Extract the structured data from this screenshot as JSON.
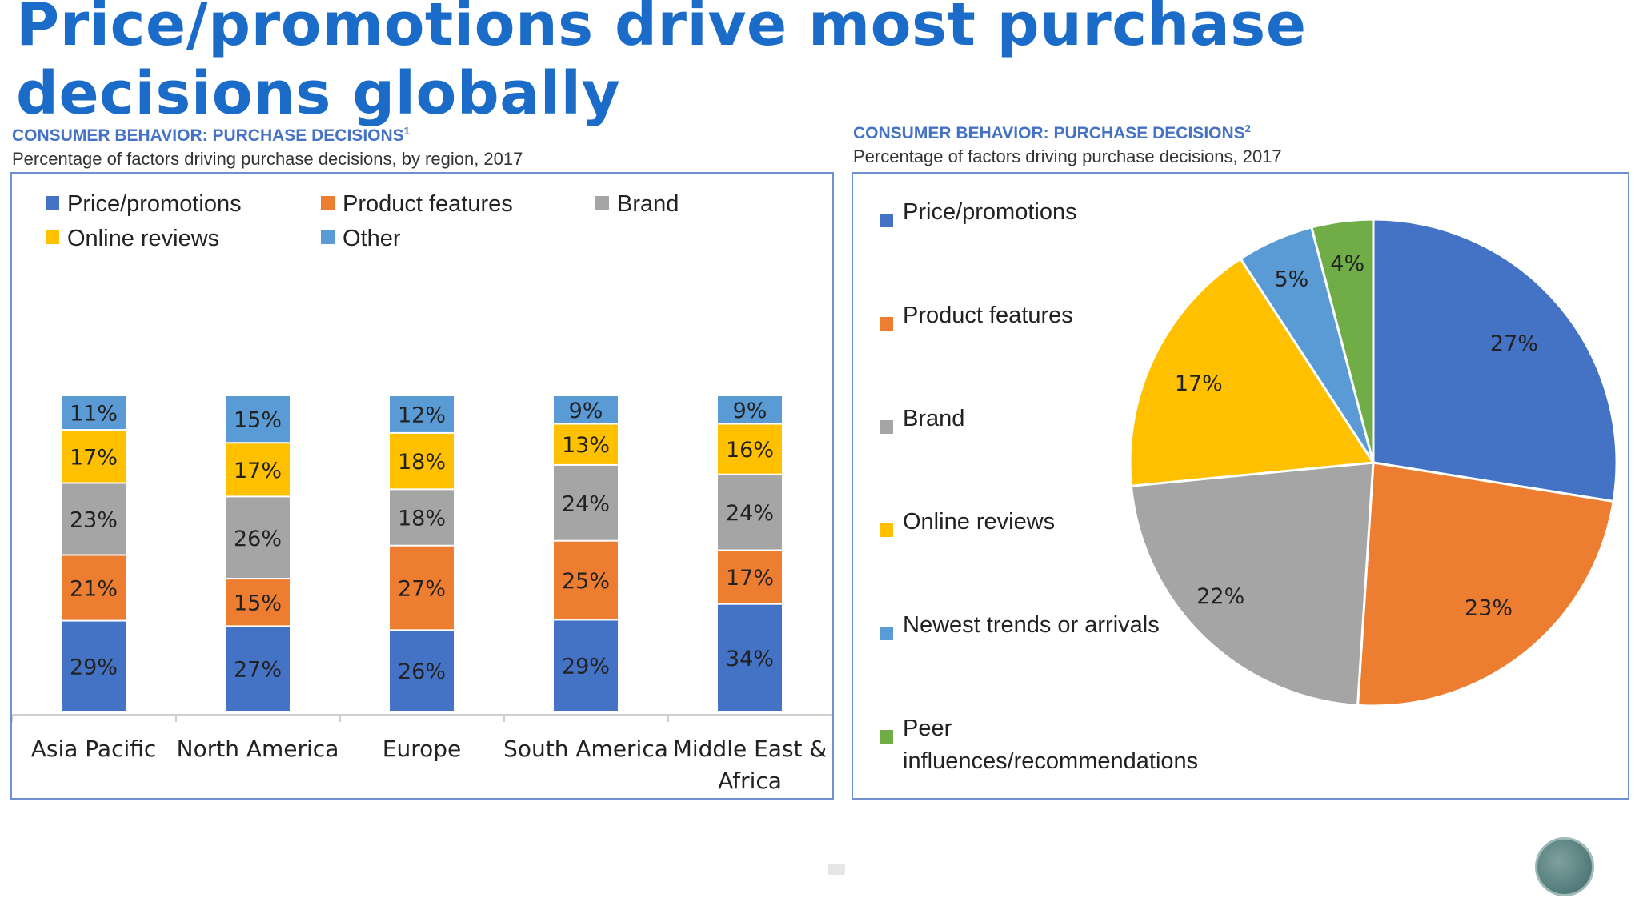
{
  "page": {
    "title": "Price/promotions drive most purchase decisions globally"
  },
  "colors": {
    "price": "#4472c4",
    "features": "#ed7d31",
    "brand": "#a5a5a5",
    "reviews": "#ffc000",
    "other": "#5b9bd5",
    "peer": "#70ad47"
  },
  "chart_data": [
    {
      "type": "bar",
      "stacked": true,
      "kicker": "CONSUMER BEHAVIOR: PURCHASE DECISIONS",
      "footnote": "1",
      "title": "Percentage of factors driving purchase decisions, by region, 2017",
      "categories": [
        "Asia Pacific",
        "North America",
        "Europe",
        "South America",
        "Middle East & Africa"
      ],
      "category_lines": [
        [
          "Asia Pacific"
        ],
        [
          "North America"
        ],
        [
          "Europe"
        ],
        [
          "South America"
        ],
        [
          "Middle East &",
          "Africa"
        ]
      ],
      "series": [
        {
          "name": "Price/promotions",
          "color_key": "price",
          "values": [
            29,
            27,
            26,
            29,
            34
          ]
        },
        {
          "name": "Product features",
          "color_key": "features",
          "values": [
            21,
            15,
            27,
            25,
            17
          ]
        },
        {
          "name": "Brand",
          "color_key": "brand",
          "values": [
            23,
            26,
            18,
            24,
            24
          ]
        },
        {
          "name": "Online reviews",
          "color_key": "reviews",
          "values": [
            17,
            17,
            18,
            13,
            16
          ]
        },
        {
          "name": "Other",
          "color_key": "other",
          "values": [
            11,
            15,
            12,
            9,
            9
          ]
        }
      ],
      "legend_order": [
        "Price/promotions",
        "Product features",
        "Brand",
        "Online reviews",
        "Other"
      ],
      "value_suffix": "%",
      "ylim": [
        0,
        100
      ]
    },
    {
      "type": "pie",
      "kicker": "CONSUMER BEHAVIOR: PURCHASE DECISIONS",
      "footnote": "2",
      "title": "Percentage of factors driving purchase decisions, 2017",
      "slices": [
        {
          "label": "Price/promotions",
          "value": 27,
          "color_key": "price"
        },
        {
          "label": "Product features",
          "value": 23,
          "color_key": "features"
        },
        {
          "label": "Brand",
          "value": 22,
          "color_key": "brand"
        },
        {
          "label": "Online reviews",
          "value": 17,
          "color_key": "reviews"
        },
        {
          "label": "Newest trends or arrivals",
          "value": 5,
          "color_key": "other"
        },
        {
          "label": "Peer influences/recommendations",
          "value": 4,
          "color_key": "peer"
        }
      ],
      "legend_lines": [
        [
          "Price/promotions"
        ],
        [
          "Product features"
        ],
        [
          "Brand"
        ],
        [
          "Online reviews"
        ],
        [
          "Newest trends or arrivals"
        ],
        [
          "Peer",
          "influences/recommendations"
        ]
      ],
      "value_suffix": "%"
    }
  ]
}
